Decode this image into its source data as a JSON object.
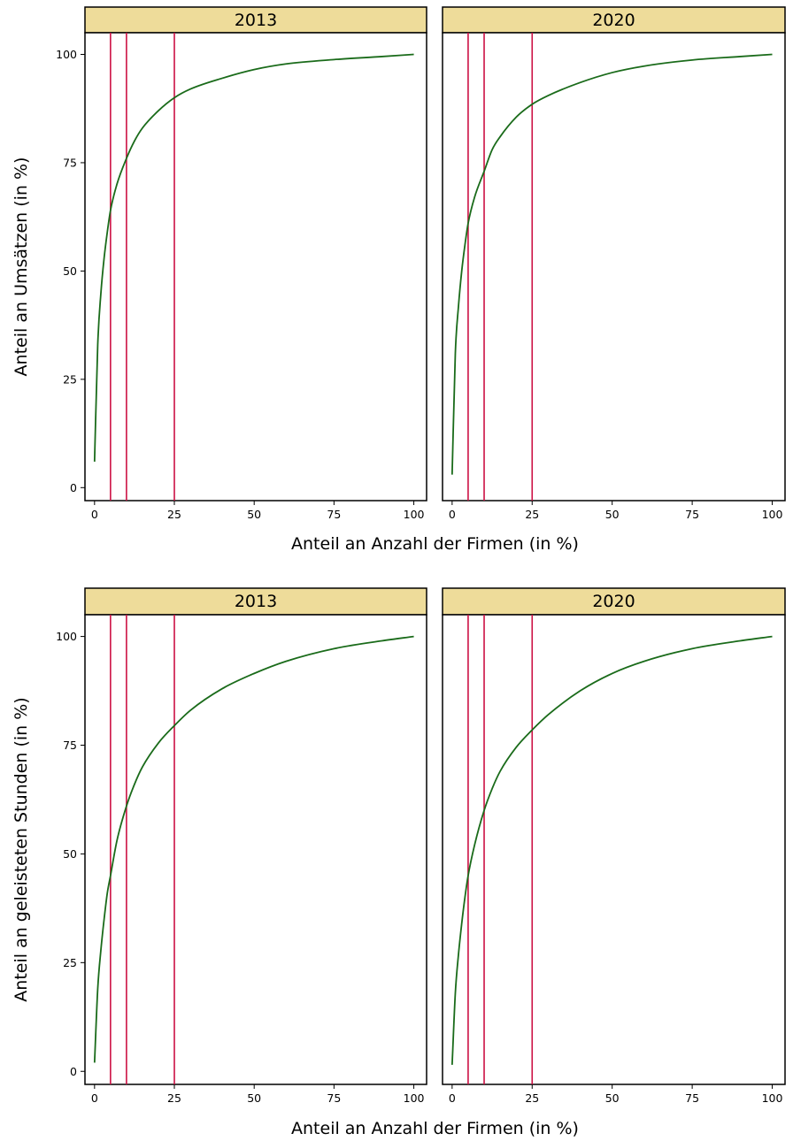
{
  "chart_data": [
    {
      "type": "line",
      "panels": [
        {
          "facet": "2013",
          "series": [
            {
              "color": "#1a6b1a",
              "x": [
                0,
                1,
                2,
                3,
                4,
                5,
                7,
                10,
                12.5,
                15,
                20,
                25,
                30,
                40,
                50,
                60,
                75,
                90,
                100
              ],
              "y": [
                6,
                33,
                45,
                53,
                59,
                64,
                70,
                76,
                80,
                83,
                87,
                90,
                92,
                94.5,
                96.5,
                97.8,
                98.8,
                99.5,
                100
              ]
            }
          ],
          "vlines": [
            5,
            10,
            25
          ]
        },
        {
          "facet": "2020",
          "series": [
            {
              "color": "#1a6b1a",
              "x": [
                0,
                1,
                2,
                3,
                4,
                5,
                7,
                10,
                12.5,
                15,
                20,
                25,
                30,
                40,
                50,
                60,
                75,
                90,
                100
              ],
              "y": [
                3,
                31,
                42,
                50,
                56,
                61,
                67,
                73,
                78,
                81,
                85.5,
                88.5,
                90.5,
                93.5,
                95.8,
                97.3,
                98.7,
                99.5,
                100
              ]
            }
          ],
          "vlines": [
            5,
            10,
            25
          ]
        }
      ],
      "xlabel": "Anteil an Anzahl der Firmen (in %)",
      "ylabel": "Anteil an Umsätzen (in %)",
      "xlim": [
        -3,
        104
      ],
      "ylim": [
        -3,
        105
      ],
      "xticks": [
        0,
        25,
        50,
        75,
        100
      ],
      "yticks": [
        0,
        25,
        50,
        75,
        100
      ],
      "vline_color": "#cc1144",
      "facet_color": "#eedc9a",
      "grid": false
    },
    {
      "type": "line",
      "panels": [
        {
          "facet": "2013",
          "series": [
            {
              "color": "#1a6b1a",
              "x": [
                0,
                1,
                2,
                3,
                4,
                5,
                7,
                10,
                12.5,
                15,
                20,
                25,
                30,
                40,
                50,
                60,
                75,
                90,
                100
              ],
              "y": [
                2,
                19,
                28,
                35,
                41,
                45,
                53,
                61,
                66,
                70,
                75.5,
                79.5,
                83,
                88,
                91.5,
                94.3,
                97.2,
                99,
                100
              ]
            }
          ],
          "vlines": [
            5,
            10,
            25
          ]
        },
        {
          "facet": "2020",
          "series": [
            {
              "color": "#1a6b1a",
              "x": [
                0,
                1,
                2,
                3,
                4,
                5,
                7,
                10,
                12.5,
                15,
                20,
                25,
                30,
                40,
                50,
                60,
                75,
                90,
                100
              ],
              "y": [
                1.5,
                18,
                27,
                34,
                40,
                45,
                52,
                60,
                65,
                69,
                74.5,
                78.5,
                82,
                87.5,
                91.5,
                94.3,
                97.2,
                99,
                100
              ]
            }
          ],
          "vlines": [
            5,
            10,
            25
          ]
        }
      ],
      "xlabel": "Anteil an Anzahl der Firmen (in %)",
      "ylabel": "Anteil an geleisteten Stunden (in %)",
      "xlim": [
        -3,
        104
      ],
      "ylim": [
        -3,
        105
      ],
      "xticks": [
        0,
        25,
        50,
        75,
        100
      ],
      "yticks": [
        0,
        25,
        50,
        75,
        100
      ],
      "vline_color": "#cc1144",
      "facet_color": "#eedc9a",
      "grid": false
    }
  ]
}
